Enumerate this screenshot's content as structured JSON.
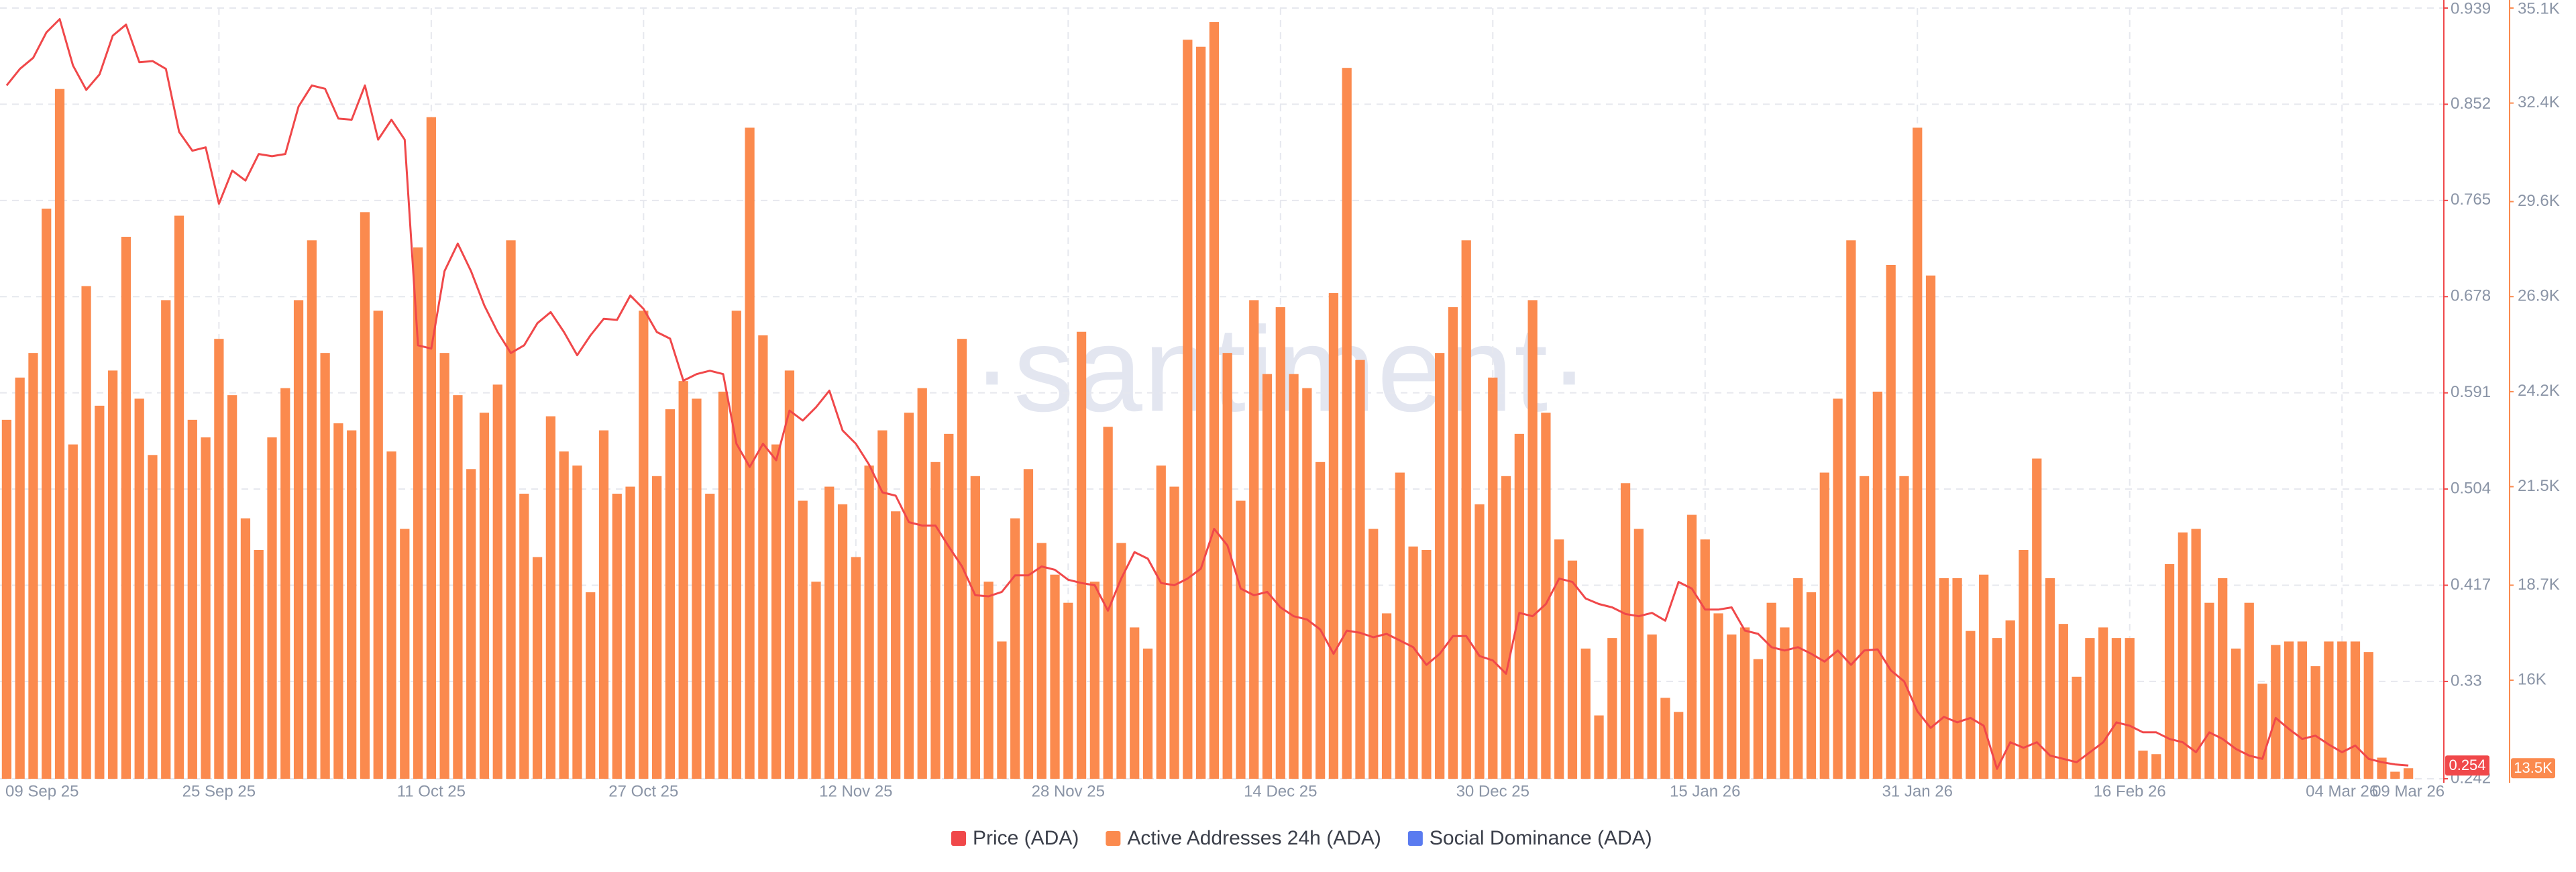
{
  "chart_data": {
    "type": "bar",
    "watermark": "·santiment·",
    "categories": [
      "09 Sep 25",
      null,
      null,
      null,
      null,
      null,
      null,
      null,
      null,
      null,
      null,
      null,
      null,
      null,
      null,
      null,
      "25 Sep 25",
      null,
      null,
      null,
      null,
      null,
      null,
      null,
      null,
      null,
      null,
      null,
      null,
      null,
      null,
      null,
      "11 Oct 25",
      null,
      null,
      null,
      null,
      null,
      null,
      null,
      null,
      null,
      null,
      null,
      null,
      null,
      null,
      null,
      "27 Oct 25",
      null,
      null,
      null,
      null,
      null,
      null,
      null,
      null,
      null,
      null,
      null,
      null,
      null,
      null,
      null,
      "12 Nov 25",
      null,
      null,
      null,
      null,
      null,
      null,
      null,
      null,
      null,
      null,
      null,
      null,
      null,
      null,
      null,
      "28 Nov 25",
      null,
      null,
      null,
      null,
      null,
      null,
      null,
      null,
      null,
      null,
      null,
      null,
      null,
      null,
      null,
      "14 Dec 25",
      null,
      null,
      null,
      null,
      null,
      null,
      null,
      null,
      null,
      null,
      null,
      null,
      null,
      null,
      null,
      "30 Dec 25",
      null,
      null,
      null,
      null,
      null,
      null,
      null,
      null,
      null,
      null,
      null,
      null,
      null,
      null,
      null,
      "15 Jan 26",
      null,
      null,
      null,
      null,
      null,
      null,
      null,
      null,
      null,
      null,
      null,
      null,
      null,
      null,
      null,
      "31 Jan 26",
      null,
      null,
      null,
      null,
      null,
      null,
      null,
      null,
      null,
      null,
      null,
      null,
      null,
      null,
      null,
      "16 Feb 26",
      null,
      null,
      null,
      null,
      null,
      null,
      null,
      null,
      null,
      null,
      null,
      null,
      null,
      null,
      null,
      "04 Mar 26",
      null,
      null,
      null,
      null,
      "09 Mar 26"
    ],
    "series": [
      {
        "name": "Price (ADA)",
        "type": "line",
        "axis": "y",
        "color": "#f0484a",
        "values": [
          0.869,
          0.884,
          0.894,
          0.917,
          0.929,
          0.887,
          0.865,
          0.879,
          0.914,
          0.924,
          0.89,
          0.891,
          0.884,
          0.827,
          0.81,
          0.813,
          0.762,
          0.792,
          0.783,
          0.807,
          0.805,
          0.807,
          0.85,
          0.869,
          0.866,
          0.839,
          0.838,
          0.869,
          0.82,
          0.838,
          0.82,
          0.634,
          0.631,
          0.701,
          0.726,
          0.701,
          0.67,
          0.646,
          0.627,
          0.634,
          0.654,
          0.664,
          0.646,
          0.625,
          0.643,
          0.658,
          0.657,
          0.679,
          0.667,
          0.646,
          0.64,
          0.602,
          0.608,
          0.611,
          0.608,
          0.545,
          0.524,
          0.545,
          0.53,
          0.575,
          0.566,
          0.578,
          0.593,
          0.557,
          0.545,
          0.526,
          0.501,
          0.498,
          0.474,
          0.471,
          0.471,
          0.452,
          0.434,
          0.408,
          0.407,
          0.411,
          0.426,
          0.426,
          0.434,
          0.431,
          0.422,
          0.419,
          0.417,
          0.394,
          0.423,
          0.447,
          0.441,
          0.419,
          0.417,
          0.423,
          0.432,
          0.468,
          0.453,
          0.414,
          0.408,
          0.411,
          0.397,
          0.389,
          0.386,
          0.377,
          0.355,
          0.376,
          0.374,
          0.37,
          0.373,
          0.367,
          0.361,
          0.345,
          0.355,
          0.371,
          0.371,
          0.353,
          0.349,
          0.337,
          0.392,
          0.389,
          0.4,
          0.423,
          0.42,
          0.405,
          0.4,
          0.397,
          0.391,
          0.389,
          0.392,
          0.385,
          0.42,
          0.414,
          0.395,
          0.395,
          0.397,
          0.376,
          0.373,
          0.361,
          0.358,
          0.361,
          0.355,
          0.348,
          0.358,
          0.345,
          0.358,
          0.359,
          0.34,
          0.33,
          0.303,
          0.288,
          0.298,
          0.293,
          0.297,
          0.29,
          0.251,
          0.275,
          0.27,
          0.275,
          0.263,
          0.26,
          0.257,
          0.266,
          0.275,
          0.293,
          0.29,
          0.284,
          0.284,
          0.278,
          0.275,
          0.266,
          0.284,
          0.278,
          0.269,
          0.263,
          0.26,
          0.297,
          0.287,
          0.278,
          0.281,
          0.273,
          0.266,
          0.272,
          0.26,
          0.257,
          0.255,
          0.254
        ]
      },
      {
        "name": "Active Addresses 24h (ADA)",
        "type": "bar",
        "axis": "y2",
        "color": "#fb8a4e",
        "values": [
          23400,
          24600,
          25300,
          29400,
          32800,
          22700,
          27200,
          23800,
          24800,
          28600,
          24000,
          22400,
          26800,
          29200,
          23400,
          22900,
          25700,
          24100,
          20600,
          19700,
          22900,
          24300,
          26800,
          28500,
          25300,
          23300,
          23100,
          29300,
          26500,
          22500,
          20300,
          28300,
          32000,
          25300,
          24100,
          22000,
          23600,
          24400,
          28500,
          21300,
          19500,
          23500,
          22500,
          22100,
          18500,
          23100,
          21300,
          21500,
          26500,
          21800,
          23700,
          24500,
          24000,
          21300,
          24200,
          26500,
          31700,
          25800,
          22700,
          24800,
          21100,
          18800,
          21500,
          21000,
          19500,
          22100,
          23100,
          20800,
          23600,
          24300,
          22200,
          23000,
          25700,
          21800,
          18800,
          17100,
          20600,
          22000,
          19900,
          19000,
          18200,
          25900,
          18800,
          23200,
          19900,
          17500,
          16900,
          22100,
          21500,
          34200,
          34000,
          34700,
          25300,
          21100,
          26800,
          24700,
          26600,
          24700,
          24300,
          22200,
          27000,
          33400,
          25100,
          20300,
          17900,
          21900,
          19800,
          19700,
          25300,
          26600,
          28500,
          21000,
          24600,
          21800,
          23000,
          26800,
          23600,
          20000,
          19400,
          16900,
          15000,
          17200,
          21600,
          20300,
          17300,
          15500,
          15100,
          20700,
          20000,
          17900,
          17300,
          17500,
          16600,
          18200,
          17500,
          18900,
          18500,
          21900,
          24000,
          28500,
          21800,
          24200,
          27800,
          21800,
          31700,
          27500,
          18900,
          18900,
          17400,
          19000,
          17200,
          17700,
          19700,
          22300,
          18900,
          17600,
          16100,
          17200,
          17500,
          17200,
          17200,
          14000,
          13900,
          19300,
          20200,
          20300,
          18200,
          18900,
          16900,
          18200,
          15900,
          17000,
          17100,
          17100,
          16400,
          17100,
          17100,
          17100,
          16800,
          13800,
          13400,
          13500
        ]
      },
      {
        "name": "Social Dominance (ADA)",
        "type": "line",
        "axis": "y",
        "color": "#5a7bf0"
      }
    ],
    "ylim": [
      0.242,
      0.939
    ],
    "yticks": [
      0.939,
      0.852,
      0.765,
      0.678,
      0.591,
      0.504,
      0.417,
      0.33,
      0.242
    ],
    "y2lim": [
      13200,
      35100
    ],
    "y2ticks": [
      {
        "value": 35100,
        "label": "35.1K"
      },
      {
        "value": 32400,
        "label": "32.4K"
      },
      {
        "value": 29600,
        "label": "29.6K"
      },
      {
        "value": 26900,
        "label": "26.9K"
      },
      {
        "value": 24200,
        "label": "24.2K"
      },
      {
        "value": 21500,
        "label": "21.5K"
      },
      {
        "value": 18700,
        "label": "18.7K"
      },
      {
        "value": 16000,
        "label": "16K"
      }
    ],
    "current_values": [
      {
        "axis": "y",
        "value": 0.254,
        "label": "0.254",
        "color": "#f0484a"
      },
      {
        "axis": "y2",
        "value": 13500,
        "label": "13.5K",
        "color": "#fb8a4e"
      }
    ],
    "grid": true,
    "legend": "bottom"
  }
}
